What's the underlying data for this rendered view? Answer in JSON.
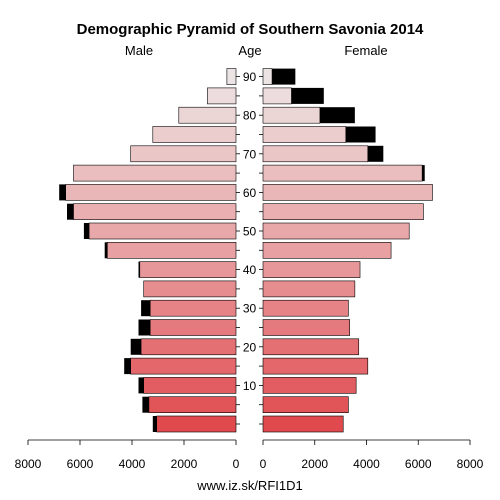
{
  "chart_data": {
    "type": "bar",
    "title": "Demographic Pyramid of Southern Savonia 2014",
    "left_label": "Male",
    "center_label": "Age",
    "right_label": "Female",
    "source": "www.iz.sk/RFI1D1",
    "xlim": [
      0,
      8000
    ],
    "x_ticks": [
      0,
      2000,
      4000,
      6000,
      8000
    ],
    "x_tick_labels": [
      "0",
      "2000",
      "4000",
      "6000",
      "8000"
    ],
    "age_tick_labels": [
      "10",
      "20",
      "30",
      "40",
      "50",
      "60",
      "70",
      "80",
      "90"
    ],
    "categories": [
      "0-4",
      "5-9",
      "10-14",
      "15-19",
      "20-24",
      "25-29",
      "30-34",
      "35-39",
      "40-44",
      "45-49",
      "50-54",
      "55-59",
      "60-64",
      "65-69",
      "70-74",
      "75-79",
      "80-84",
      "85-89",
      "90+"
    ],
    "series": [
      {
        "name": "Male",
        "values": [
          3050,
          3350,
          3550,
          4050,
          3650,
          3300,
          3300,
          3550,
          3700,
          4950,
          5650,
          6250,
          6550,
          6250,
          4050,
          3200,
          2200,
          1100,
          350
        ],
        "excess": [
          150,
          250,
          200,
          250,
          400,
          450,
          350,
          0,
          50,
          100,
          200,
          250,
          250,
          0,
          0,
          0,
          0,
          0,
          0
        ]
      },
      {
        "name": "Female",
        "values": [
          3100,
          3300,
          3600,
          4050,
          3700,
          3350,
          3300,
          3550,
          3750,
          4950,
          5650,
          6200,
          6550,
          6150,
          4050,
          3200,
          2200,
          1100,
          350
        ],
        "excess": [
          0,
          0,
          0,
          0,
          0,
          0,
          0,
          0,
          0,
          0,
          0,
          0,
          0,
          100,
          600,
          1150,
          1350,
          1250,
          900
        ]
      }
    ],
    "colors": {
      "excess": "#000000",
      "gradient_young": "#e04a4f",
      "gradient_mid": "#e8a0a2",
      "gradient_old": "#ece4e4"
    }
  }
}
